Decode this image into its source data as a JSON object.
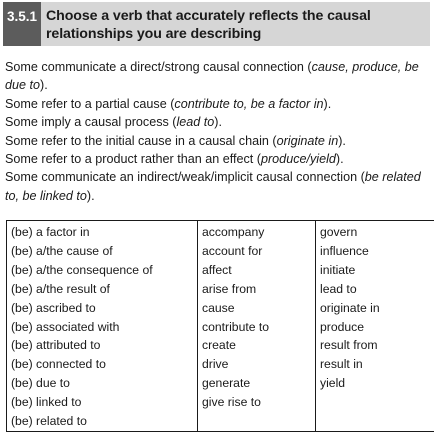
{
  "header": {
    "number": "3.5.1",
    "title_line1": "Choose a verb that accurately reflects the causal",
    "title_line2": "relationships you are describing"
  },
  "intro": [
    {
      "before": "Some communicate a direct/strong causal connection (",
      "examples": "cause, produce, be due to",
      "after": ")."
    },
    {
      "before": "Some refer to a partial cause (",
      "examples": "contribute to, be a factor in",
      "after": ")."
    },
    {
      "before": "Some imply a causal process (",
      "examples": "lead to",
      "after": ")."
    },
    {
      "before": "Some refer to the initial cause in a causal chain (",
      "examples": "originate in",
      "after": ")."
    },
    {
      "before": "Some refer to a product rather than an effect (",
      "examples": "produce/yield",
      "after": ")."
    },
    {
      "before": "Some communicate an indirect/weak/implicit causal connection (",
      "examples": "be related to, be linked to",
      "after": ")."
    }
  ],
  "table": {
    "columns": [
      [
        "(be) a factor in",
        "(be) a/the cause of",
        "(be) a/the consequence of",
        "(be) a/the result of",
        "(be) ascribed to",
        "(be) associated with",
        "(be) attributed to",
        "(be) connected to",
        "(be) due to",
        "(be) linked to",
        "(be) related to"
      ],
      [
        "accompany",
        "account for",
        "affect",
        "arise from",
        "cause",
        "contribute to",
        "create",
        "drive",
        "generate",
        "give rise to"
      ],
      [
        "govern",
        "influence",
        "initiate",
        "lead to",
        "originate in",
        "produce",
        "result from",
        "result in",
        "yield"
      ]
    ]
  }
}
